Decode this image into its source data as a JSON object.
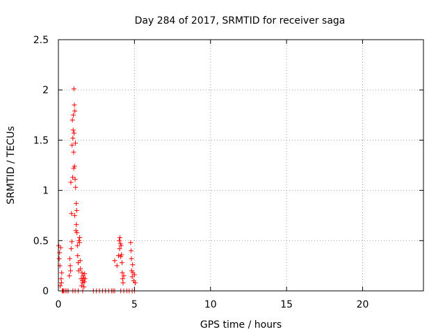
{
  "chart_data": {
    "type": "scatter",
    "title": "Day 284 of 2017, SRMTID for receiver saga",
    "xlabel": "GPS time / hours",
    "ylabel": "SRMTID / TECUs",
    "xlim": [
      0,
      24
    ],
    "ylim": [
      0,
      2.5
    ],
    "xticks": [
      "0",
      "5",
      "10",
      "15",
      "20"
    ],
    "yticks": [
      "0",
      "0.5",
      "1",
      "1.5",
      "2",
      "2.5"
    ],
    "grid": true,
    "legend": "none",
    "marker": "plus",
    "color": "#ff0000",
    "series": [
      {
        "points": [
          [
            0.02,
            0.45
          ],
          [
            0.05,
            0.32
          ],
          [
            0.08,
            0.38
          ],
          [
            0.1,
            0.25
          ],
          [
            0.12,
            0.05
          ],
          [
            0.15,
            0.43
          ],
          [
            0.18,
            0.12
          ],
          [
            0.2,
            0.08
          ],
          [
            0.22,
            0.18
          ],
          [
            0.25,
            0.0
          ],
          [
            0.3,
            0.0
          ],
          [
            0.35,
            0.0
          ],
          [
            0.45,
            0.0
          ],
          [
            0.55,
            0.0
          ],
          [
            0.65,
            0.0
          ],
          [
            0.72,
            0.15
          ],
          [
            0.75,
            0.32
          ],
          [
            0.78,
            0.25
          ],
          [
            0.8,
            0.2
          ],
          [
            0.82,
            1.08
          ],
          [
            0.84,
            0.42
          ],
          [
            0.86,
            0.77
          ],
          [
            0.88,
            0.49
          ],
          [
            0.9,
            1.45
          ],
          [
            0.92,
            1.7
          ],
          [
            0.94,
            1.13
          ],
          [
            0.95,
            1.52
          ],
          [
            0.97,
            1.6
          ],
          [
            0.98,
            1.75
          ],
          [
            1.0,
            1.38
          ],
          [
            1.01,
            1.22
          ],
          [
            1.02,
            2.01
          ],
          [
            1.03,
            1.57
          ],
          [
            1.05,
            1.85
          ],
          [
            1.06,
            1.24
          ],
          [
            1.07,
            0.75
          ],
          [
            1.08,
            1.79
          ],
          [
            1.1,
            1.11
          ],
          [
            1.12,
            1.47
          ],
          [
            1.13,
            1.03
          ],
          [
            1.15,
            0.6
          ],
          [
            1.17,
            0.87
          ],
          [
            1.18,
            0.66
          ],
          [
            1.2,
            0.8
          ],
          [
            1.22,
            0.58
          ],
          [
            1.25,
            0.45
          ],
          [
            1.27,
            0.35
          ],
          [
            1.3,
            0.28
          ],
          [
            1.33,
            0.2
          ],
          [
            1.35,
            0.5
          ],
          [
            1.38,
            0.48
          ],
          [
            1.4,
            0.53
          ],
          [
            1.43,
            0.3
          ],
          [
            1.45,
            0.22
          ],
          [
            1.5,
            0.12
          ],
          [
            1.52,
            0.05
          ],
          [
            1.55,
            0.18
          ],
          [
            1.58,
            0.1
          ],
          [
            1.6,
            0.08
          ],
          [
            1.62,
            0.15
          ],
          [
            1.65,
            0.13
          ],
          [
            1.68,
            0.04
          ],
          [
            1.7,
            0.09
          ],
          [
            1.72,
            0.17
          ],
          [
            1.75,
            0.12
          ],
          [
            0.95,
            0.0
          ],
          [
            1.1,
            0.0
          ],
          [
            1.3,
            0.0
          ],
          [
            1.6,
            0.0
          ],
          [
            2.3,
            0.0
          ],
          [
            2.5,
            0.0
          ],
          [
            2.7,
            0.0
          ],
          [
            2.9,
            0.0
          ],
          [
            3.1,
            0.0
          ],
          [
            3.3,
            0.0
          ],
          [
            3.5,
            0.0
          ],
          [
            3.6,
            0.0
          ],
          [
            3.7,
            0.0
          ],
          [
            3.7,
            0.3
          ],
          [
            3.85,
            0.25
          ],
          [
            3.95,
            0.35
          ],
          [
            4.0,
            0.5
          ],
          [
            4.02,
            0.42
          ],
          [
            4.05,
            0.53
          ],
          [
            4.08,
            0.47
          ],
          [
            4.1,
            0.34
          ],
          [
            4.12,
            0.45
          ],
          [
            4.15,
            0.36
          ],
          [
            4.18,
            0.28
          ],
          [
            4.2,
            0.18
          ],
          [
            4.22,
            0.12
          ],
          [
            4.25,
            0.08
          ],
          [
            4.3,
            0.15
          ],
          [
            4.1,
            0.0
          ],
          [
            4.3,
            0.0
          ],
          [
            4.5,
            0.0
          ],
          [
            4.65,
            0.0
          ],
          [
            4.75,
            0.48
          ],
          [
            4.78,
            0.4
          ],
          [
            4.8,
            0.32
          ],
          [
            4.82,
            0.2
          ],
          [
            4.85,
            0.14
          ],
          [
            4.88,
            0.26
          ],
          [
            4.9,
            0.18
          ],
          [
            4.95,
            0.1
          ],
          [
            5.0,
            0.16
          ],
          [
            5.05,
            0.08
          ],
          [
            4.85,
            0.0
          ],
          [
            5.0,
            0.0
          ]
        ]
      }
    ]
  }
}
